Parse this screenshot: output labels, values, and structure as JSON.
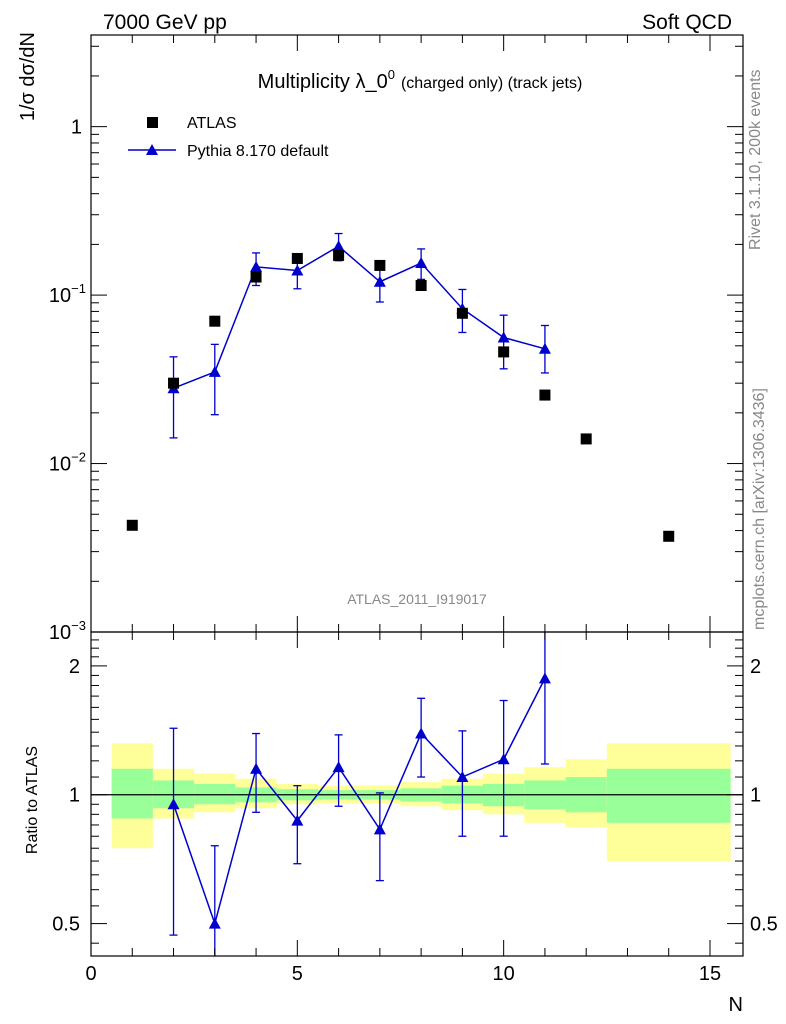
{
  "header": {
    "left": "7000 GeV pp",
    "right": "Soft QCD"
  },
  "side_labels": {
    "rivet": "Rivet 3.1.10,  200k events",
    "mcplots": "mcplots.cern.ch [arXiv:1306.3436]"
  },
  "colors": {
    "data": "#000000",
    "mc": "#0000cc",
    "band_inner": "#99ff99",
    "band_outer": "#ffff99"
  },
  "chart_data": [
    {
      "type": "scatter",
      "title_main": "Multiplicity λ_0",
      "title_sup": "0",
      "title_suffix": "(charged only) (track jets)",
      "ylabel": "1/σ dσ/dN",
      "yscale": "log",
      "ylim": [
        0.001,
        3.5
      ],
      "xlim": [
        0,
        15.8
      ],
      "yticks": [
        {
          "value": 0.001,
          "base": "10",
          "exp": "−3"
        },
        {
          "value": 0.01,
          "base": "10",
          "exp": "−2"
        },
        {
          "value": 0.1,
          "base": "10",
          "exp": "−1"
        },
        {
          "value": 1,
          "base": "1",
          "exp": ""
        }
      ],
      "watermark": "ATLAS_2011_I919017",
      "legend": {
        "position": "top-left",
        "entries": [
          "ATLAS",
          "Pythia 8.170 default"
        ]
      },
      "series": [
        {
          "name": "ATLAS",
          "marker": "square",
          "points": [
            {
              "x": 1,
              "y": 0.0043
            },
            {
              "x": 2,
              "y": 0.03
            },
            {
              "x": 3,
              "y": 0.07
            },
            {
              "x": 4,
              "y": 0.128
            },
            {
              "x": 5,
              "y": 0.165
            },
            {
              "x": 6,
              "y": 0.172
            },
            {
              "x": 7,
              "y": 0.15
            },
            {
              "x": 8,
              "y": 0.114
            },
            {
              "x": 9,
              "y": 0.078
            },
            {
              "x": 10,
              "y": 0.046
            },
            {
              "x": 11,
              "y": 0.0255
            },
            {
              "x": 12,
              "y": 0.014
            },
            {
              "x": 14,
              "y": 0.0037
            }
          ]
        },
        {
          "name": "Pythia 8.170 default",
          "marker": "triangle",
          "points": [
            {
              "x": 2,
              "y": 0.028,
              "lo": 0.0142,
              "hi": 0.043
            },
            {
              "x": 3,
              "y": 0.035,
              "lo": 0.0195,
              "hi": 0.051
            },
            {
              "x": 4,
              "y": 0.147,
              "lo": 0.114,
              "hi": 0.178
            },
            {
              "x": 5,
              "y": 0.14,
              "lo": 0.109,
              "hi": 0.171
            },
            {
              "x": 6,
              "y": 0.195,
              "lo": 0.16,
              "hi": 0.232
            },
            {
              "x": 7,
              "y": 0.12,
              "lo": 0.091,
              "hi": 0.149
            },
            {
              "x": 8,
              "y": 0.155,
              "lo": 0.124,
              "hi": 0.188
            },
            {
              "x": 9,
              "y": 0.083,
              "lo": 0.06,
              "hi": 0.108
            },
            {
              "x": 10,
              "y": 0.056,
              "lo": 0.0365,
              "hi": 0.076
            },
            {
              "x": 11,
              "y": 0.048,
              "lo": 0.0345,
              "hi": 0.066
            }
          ]
        }
      ]
    },
    {
      "type": "scatter",
      "ylabel": "Ratio to ATLAS",
      "xlabel": "N",
      "yscale": "log",
      "ylim": [
        0.42,
        2.4
      ],
      "xlim": [
        0,
        15.8
      ],
      "xticks": [
        0,
        5,
        10,
        15
      ],
      "yticks": [
        {
          "value": 0.5,
          "label": "0.5"
        },
        {
          "value": 1,
          "label": "1"
        },
        {
          "value": 2,
          "label": "2"
        }
      ],
      "bands": [
        {
          "x0": 0.5,
          "x1": 1.5,
          "inner": [
            0.88,
            1.15
          ],
          "outer": [
            0.75,
            1.32
          ]
        },
        {
          "x0": 1.5,
          "x1": 2.5,
          "inner": [
            0.93,
            1.08
          ],
          "outer": [
            0.88,
            1.15
          ]
        },
        {
          "x0": 2.5,
          "x1": 3.5,
          "inner": [
            0.95,
            1.06
          ],
          "outer": [
            0.91,
            1.12
          ]
        },
        {
          "x0": 3.5,
          "x1": 4.5,
          "inner": [
            0.96,
            1.04
          ],
          "outer": [
            0.93,
            1.09
          ]
        },
        {
          "x0": 4.5,
          "x1": 5.5,
          "inner": [
            0.97,
            1.03
          ],
          "outer": [
            0.95,
            1.06
          ]
        },
        {
          "x0": 5.5,
          "x1": 6.5,
          "inner": [
            0.975,
            1.025
          ],
          "outer": [
            0.955,
            1.05
          ]
        },
        {
          "x0": 6.5,
          "x1": 7.5,
          "inner": [
            0.975,
            1.025
          ],
          "outer": [
            0.955,
            1.05
          ]
        },
        {
          "x0": 7.5,
          "x1": 8.5,
          "inner": [
            0.965,
            1.035
          ],
          "outer": [
            0.94,
            1.07
          ]
        },
        {
          "x0": 8.5,
          "x1": 9.5,
          "inner": [
            0.955,
            1.05
          ],
          "outer": [
            0.92,
            1.09
          ]
        },
        {
          "x0": 9.5,
          "x1": 10.5,
          "inner": [
            0.94,
            1.06
          ],
          "outer": [
            0.9,
            1.12
          ]
        },
        {
          "x0": 10.5,
          "x1": 11.5,
          "inner": [
            0.925,
            1.08
          ],
          "outer": [
            0.86,
            1.16
          ]
        },
        {
          "x0": 11.5,
          "x1": 12.5,
          "inner": [
            0.91,
            1.1
          ],
          "outer": [
            0.84,
            1.21
          ]
        },
        {
          "x0": 12.5,
          "x1": 15.5,
          "inner": [
            0.86,
            1.15
          ],
          "outer": [
            0.7,
            1.32
          ]
        }
      ],
      "series": [
        {
          "name": "Pythia 8.170 default",
          "marker": "triangle",
          "points": [
            {
              "x": 2,
              "y": 0.95,
              "lo": 0.47,
              "hi": 1.43
            },
            {
              "x": 3,
              "y": 0.5,
              "lo": 0.41,
              "hi": 0.76
            },
            {
              "x": 4,
              "y": 1.15,
              "lo": 0.91,
              "hi": 1.39
            },
            {
              "x": 5,
              "y": 0.87,
              "lo": 0.69,
              "hi": 1.05
            },
            {
              "x": 6,
              "y": 1.16,
              "lo": 0.94,
              "hi": 1.38
            },
            {
              "x": 7,
              "y": 0.83,
              "lo": 0.63,
              "hi": 1.01
            },
            {
              "x": 8,
              "y": 1.39,
              "lo": 1.1,
              "hi": 1.68
            },
            {
              "x": 9,
              "y": 1.1,
              "lo": 0.8,
              "hi": 1.41
            },
            {
              "x": 10,
              "y": 1.21,
              "lo": 0.8,
              "hi": 1.66
            },
            {
              "x": 11,
              "y": 1.87,
              "lo": 1.18,
              "hi": 2.5
            }
          ]
        }
      ]
    }
  ]
}
